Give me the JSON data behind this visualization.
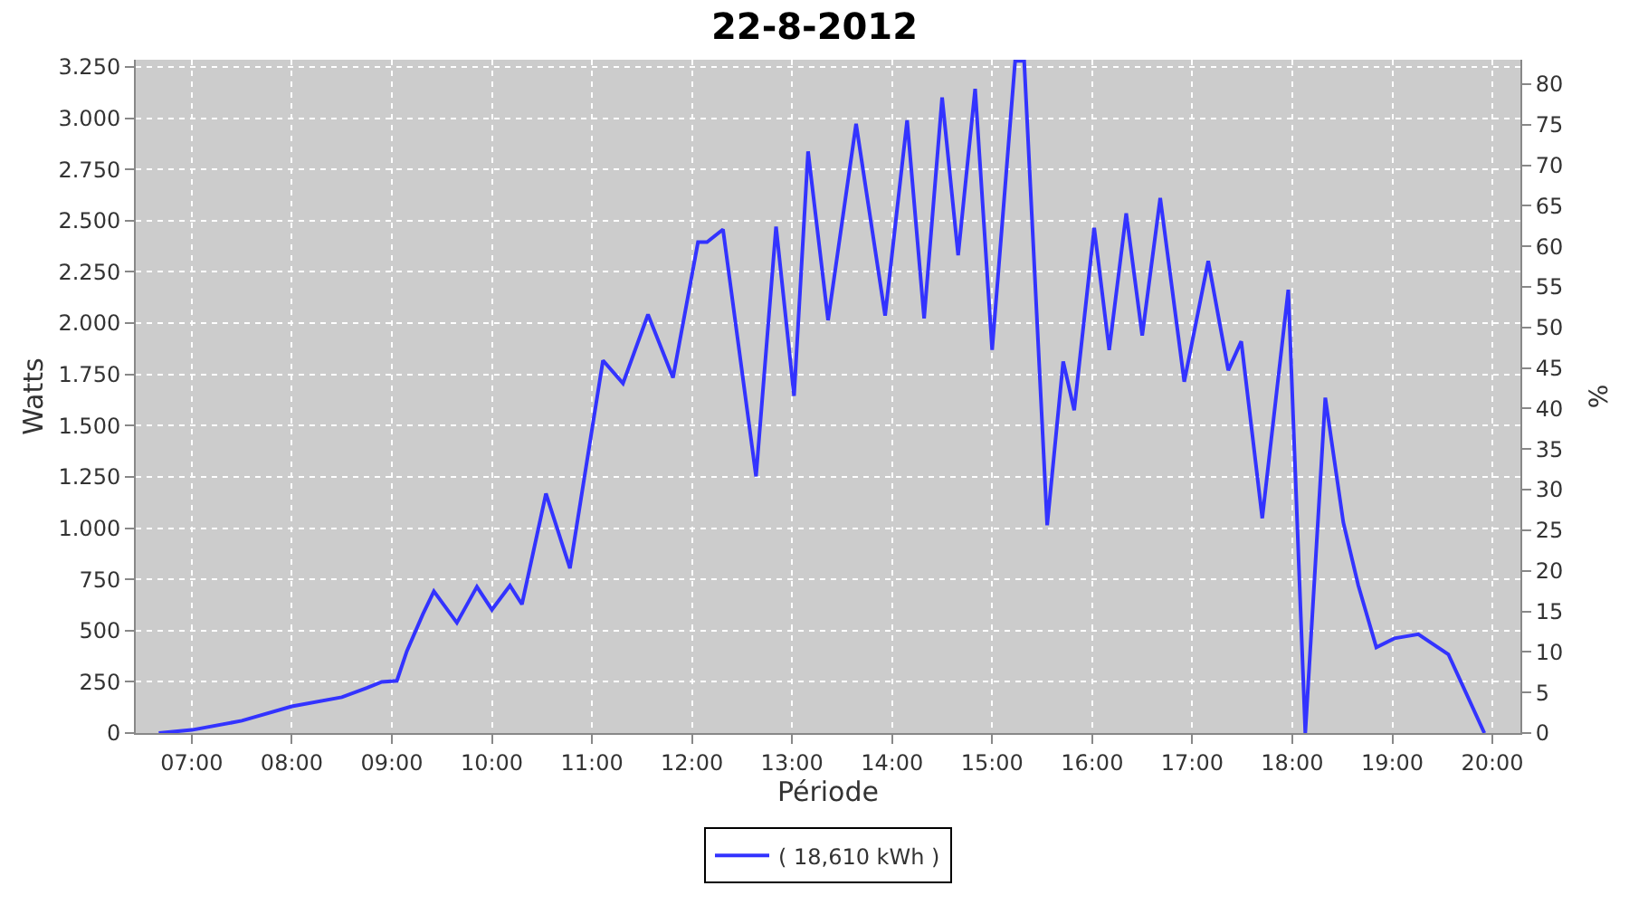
{
  "chart_data": {
    "type": "line",
    "title": "22-8-2012",
    "xlabel": "Période",
    "ylabel": "Watts",
    "y2label": "%",
    "x": [
      6.67,
      7.0,
      7.5,
      8.0,
      8.5,
      8.75,
      8.9,
      9.05,
      9.15,
      9.31,
      9.42,
      9.65,
      9.85,
      10.0,
      10.18,
      10.3,
      10.54,
      10.78,
      11.11,
      11.31,
      11.56,
      11.81,
      12.06,
      12.15,
      12.31,
      12.64,
      12.84,
      13.02,
      13.16,
      13.36,
      13.64,
      13.93,
      14.15,
      14.32,
      14.5,
      14.66,
      14.83,
      15.0,
      15.23,
      15.32,
      15.55,
      15.71,
      15.82,
      16.02,
      16.17,
      16.34,
      16.5,
      16.68,
      16.92,
      17.16,
      17.36,
      17.49,
      17.7,
      17.96,
      18.13,
      18.33,
      18.51,
      18.66,
      18.84,
      19.02,
      19.26,
      19.56,
      19.92
    ],
    "series": [
      {
        "name": "( 18,610 kWh )",
        "color": "#3333ff",
        "values": [
          0,
          15,
          60,
          130,
          175,
          220,
          250,
          255,
          400,
          580,
          692,
          538,
          714,
          602,
          720,
          628,
          1168,
          804,
          1818,
          1706,
          2042,
          1734,
          2395,
          2395,
          2457,
          1252,
          2471,
          1645,
          2838,
          2014,
          2972,
          2037,
          2989,
          2023,
          3101,
          2331,
          3143,
          1869,
          3280,
          3280,
          1014,
          1813,
          1575,
          2465,
          1869,
          2535,
          1939,
          2611,
          1714,
          2303,
          1770,
          1911,
          1048,
          2163,
          0,
          1636,
          1028,
          720,
          418,
          462,
          482,
          384,
          0
        ]
      }
    ],
    "xlim": [
      6.44,
      20.28
    ],
    "xticks": [
      {
        "value": 7,
        "label": "07:00"
      },
      {
        "value": 8,
        "label": "08:00"
      },
      {
        "value": 9,
        "label": "09:00"
      },
      {
        "value": 10,
        "label": "10:00"
      },
      {
        "value": 11,
        "label": "11:00"
      },
      {
        "value": 12,
        "label": "12:00"
      },
      {
        "value": 13,
        "label": "13:00"
      },
      {
        "value": 14,
        "label": "14:00"
      },
      {
        "value": 15,
        "label": "15:00"
      },
      {
        "value": 16,
        "label": "16:00"
      },
      {
        "value": 17,
        "label": "17:00"
      },
      {
        "value": 18,
        "label": "18:00"
      },
      {
        "value": 19,
        "label": "19:00"
      },
      {
        "value": 20,
        "label": "20:00"
      }
    ],
    "ylim": [
      0,
      3285
    ],
    "yticks": [
      0,
      250,
      500,
      750,
      {
        "value": 1000,
        "label": "1.000"
      },
      {
        "value": 1250,
        "label": "1.250"
      },
      {
        "value": 1500,
        "label": "1.500"
      },
      {
        "value": 1750,
        "label": "1.750"
      },
      {
        "value": 2000,
        "label": "2.000"
      },
      {
        "value": 2250,
        "label": "2.250"
      },
      {
        "value": 2500,
        "label": "2.500"
      },
      {
        "value": 2750,
        "label": "2.750"
      },
      {
        "value": 3000,
        "label": "3.000"
      },
      {
        "value": 3250,
        "label": "3.250"
      }
    ],
    "y2lim": [
      0,
      83
    ],
    "y2ticks": [
      0,
      5,
      10,
      15,
      20,
      25,
      30,
      35,
      40,
      45,
      50,
      55,
      60,
      65,
      70,
      75,
      80
    ],
    "grid": true,
    "legend": "bottom",
    "marker": "none",
    "line_style": "solid"
  }
}
